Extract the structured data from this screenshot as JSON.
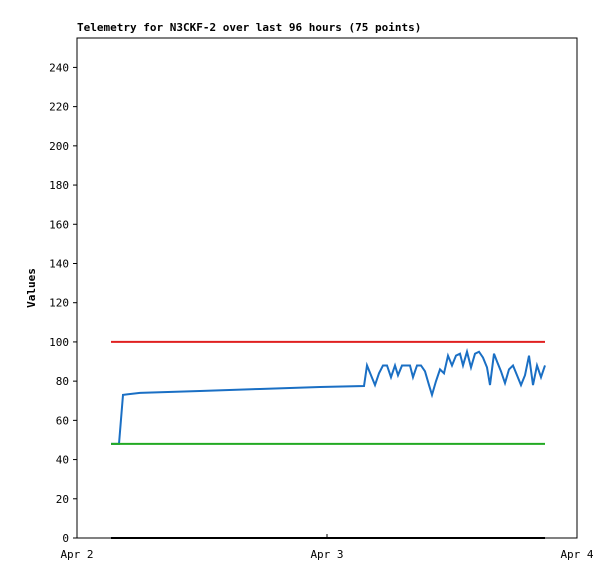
{
  "chart_data": {
    "type": "line",
    "title": "Telemetry for N3CKF-2 over last 96 hours (75 points)",
    "y_label": "Values",
    "xlim": [
      0,
      2
    ],
    "xticks": [
      {
        "value": 0,
        "label": "Apr 2"
      },
      {
        "value": 1,
        "label": "Apr 3"
      },
      {
        "value": 2,
        "label": "Apr 4"
      }
    ],
    "ylim": [
      0,
      255
    ],
    "yticks": [
      0,
      20,
      40,
      60,
      80,
      100,
      120,
      140,
      160,
      180,
      200,
      220,
      240
    ],
    "series": [
      {
        "color": "#1a6fc4",
        "x": [
          0.136,
          0.168,
          0.184,
          0.252,
          0.492,
          0.732,
          0.972,
          1.148,
          1.16,
          1.176,
          1.192,
          1.208,
          1.224,
          1.24,
          1.256,
          1.272,
          1.284,
          1.3,
          1.316,
          1.332,
          1.344,
          1.36,
          1.376,
          1.392,
          1.408,
          1.42,
          1.436,
          1.452,
          1.468,
          1.484,
          1.5,
          1.516,
          1.532,
          1.544,
          1.56,
          1.576,
          1.592,
          1.608,
          1.624,
          1.64,
          1.652,
          1.668,
          1.68,
          1.696,
          1.712,
          1.728,
          1.744,
          1.76,
          1.776,
          1.792,
          1.808,
          1.824,
          1.84,
          1.856,
          1.872
        ],
        "values": [
          48,
          48,
          73,
          74,
          75,
          76,
          77,
          77.5,
          88,
          83,
          78,
          84,
          88,
          88,
          82,
          88,
          83,
          88,
          88,
          88,
          82,
          88,
          88,
          85,
          78,
          73,
          80,
          86,
          84,
          93,
          88,
          93,
          94,
          88,
          95,
          87,
          94,
          95,
          92,
          87,
          78,
          94,
          90,
          85,
          79,
          86,
          88,
          83,
          78,
          83,
          93,
          78,
          88,
          82,
          88
        ]
      },
      {
        "color": "#e02020",
        "x": [
          0.136,
          1.872
        ],
        "values": [
          100,
          100
        ]
      },
      {
        "color": "#22aa22",
        "x": [
          0.136,
          1.872
        ],
        "values": [
          48,
          48
        ]
      },
      {
        "color": "#000000",
        "x": [
          0.136,
          1.872
        ],
        "values": [
          0,
          0
        ]
      }
    ]
  }
}
